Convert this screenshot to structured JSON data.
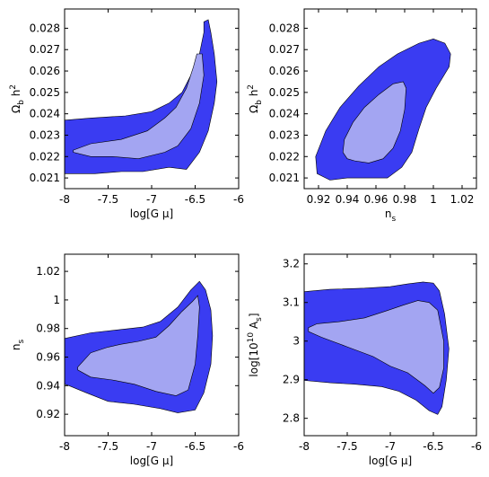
{
  "colors": {
    "outer": "#3a3cf2",
    "inner": "#a3a5f2"
  },
  "chart_data": [
    {
      "type": "area",
      "xlim": [
        -8,
        -6
      ],
      "ylim": [
        0.0205,
        0.0289
      ],
      "xticks": [
        -8,
        -7.5,
        -7,
        -6.5,
        -6
      ],
      "xtick_labels": [
        "-8",
        "-7.5",
        "-7",
        "-6.5",
        "-6"
      ],
      "yticks": [
        0.021,
        0.022,
        0.023,
        0.024,
        0.025,
        0.026,
        0.027,
        0.028
      ],
      "ytick_labels": [
        "0.021",
        "0.022",
        "0.023",
        "0.024",
        "0.025",
        "0.026",
        "0.027",
        "0.028"
      ],
      "xlabel": "log[G μ]",
      "ylabel": {
        "main": "Ω",
        "sub": "b",
        "tail": " h",
        "sup": "2"
      },
      "outer": [
        [
          -8,
          0.0237
        ],
        [
          -7.7,
          0.0238
        ],
        [
          -7.3,
          0.0239
        ],
        [
          -7,
          0.0241
        ],
        [
          -6.8,
          0.0245
        ],
        [
          -6.65,
          0.025
        ],
        [
          -6.55,
          0.0258
        ],
        [
          -6.45,
          0.0268
        ],
        [
          -6.4,
          0.0278
        ],
        [
          -6.4,
          0.0283
        ],
        [
          -6.35,
          0.0284
        ],
        [
          -6.32,
          0.0278
        ],
        [
          -6.28,
          0.0268
        ],
        [
          -6.25,
          0.0255
        ],
        [
          -6.28,
          0.0245
        ],
        [
          -6.35,
          0.0232
        ],
        [
          -6.45,
          0.0222
        ],
        [
          -6.6,
          0.0214
        ],
        [
          -6.8,
          0.0215
        ],
        [
          -7.1,
          0.0213
        ],
        [
          -7.35,
          0.0213
        ],
        [
          -7.65,
          0.0212
        ],
        [
          -7.85,
          0.0212
        ],
        [
          -8,
          0.0212
        ]
      ],
      "inner": [
        [
          -7.9,
          0.0223
        ],
        [
          -7.7,
          0.0226
        ],
        [
          -7.35,
          0.0228
        ],
        [
          -7.05,
          0.0232
        ],
        [
          -6.85,
          0.0238
        ],
        [
          -6.72,
          0.0243
        ],
        [
          -6.6,
          0.0252
        ],
        [
          -6.52,
          0.0262
        ],
        [
          -6.48,
          0.0268
        ],
        [
          -6.42,
          0.0268
        ],
        [
          -6.4,
          0.0258
        ],
        [
          -6.45,
          0.0245
        ],
        [
          -6.55,
          0.0233
        ],
        [
          -6.7,
          0.0225
        ],
        [
          -6.85,
          0.0222
        ],
        [
          -7.15,
          0.0219
        ],
        [
          -7.45,
          0.022
        ],
        [
          -7.7,
          0.022
        ],
        [
          -7.9,
          0.0222
        ]
      ]
    },
    {
      "type": "area",
      "xlim": [
        0.91,
        1.03
      ],
      "ylim": [
        0.0205,
        0.0289
      ],
      "xticks": [
        0.92,
        0.94,
        0.96,
        0.98,
        1,
        1.02
      ],
      "xtick_labels": [
        "0.92",
        "0.94",
        "0.96",
        "0.98",
        "1",
        "1.02"
      ],
      "yticks": [
        0.021,
        0.022,
        0.023,
        0.024,
        0.025,
        0.026,
        0.027,
        0.028
      ],
      "ytick_labels": [
        "0.021",
        "0.022",
        "0.023",
        "0.024",
        "0.025",
        "0.026",
        "0.027",
        "0.028"
      ],
      "xlabel": {
        "main": "n",
        "sub": "s"
      },
      "ylabel": {
        "main": "Ω",
        "sub": "b",
        "tail": " h",
        "sup": "2"
      },
      "outer": [
        [
          0.919,
          0.0212
        ],
        [
          0.918,
          0.022
        ],
        [
          0.925,
          0.0232
        ],
        [
          0.935,
          0.0243
        ],
        [
          0.948,
          0.0253
        ],
        [
          0.962,
          0.0262
        ],
        [
          0.975,
          0.0268
        ],
        [
          0.99,
          0.0273
        ],
        [
          1.0,
          0.0275
        ],
        [
          1.008,
          0.0273
        ],
        [
          1.012,
          0.0268
        ],
        [
          1.011,
          0.0262
        ],
        [
          1.002,
          0.0252
        ],
        [
          0.995,
          0.0243
        ],
        [
          0.99,
          0.0233
        ],
        [
          0.985,
          0.0222
        ],
        [
          0.978,
          0.0215
        ],
        [
          0.968,
          0.021
        ],
        [
          0.955,
          0.021
        ],
        [
          0.94,
          0.021
        ],
        [
          0.928,
          0.0209
        ]
      ],
      "inner": [
        [
          0.937,
          0.0222
        ],
        [
          0.938,
          0.0228
        ],
        [
          0.944,
          0.0236
        ],
        [
          0.952,
          0.0243
        ],
        [
          0.962,
          0.0249
        ],
        [
          0.972,
          0.0254
        ],
        [
          0.979,
          0.0255
        ],
        [
          0.981,
          0.0252
        ],
        [
          0.98,
          0.0242
        ],
        [
          0.977,
          0.0232
        ],
        [
          0.972,
          0.0224
        ],
        [
          0.965,
          0.0219
        ],
        [
          0.955,
          0.0217
        ],
        [
          0.945,
          0.0218
        ],
        [
          0.94,
          0.0219
        ]
      ]
    },
    {
      "type": "area",
      "xlim": [
        -8,
        -6
      ],
      "ylim": [
        0.905,
        1.032
      ],
      "xticks": [
        -8,
        -7.5,
        -7,
        -6.5,
        -6
      ],
      "xtick_labels": [
        "-8",
        "-7.5",
        "-7",
        "-6.5",
        "-6"
      ],
      "yticks": [
        0.92,
        0.94,
        0.96,
        0.98,
        1,
        1.02
      ],
      "ytick_labels": [
        "0.92",
        "0.94",
        "0.96",
        "0.98",
        "1",
        "1.02"
      ],
      "xlabel": "log[G μ]",
      "ylabel": {
        "main": "n",
        "sub": "s"
      },
      "outer": [
        [
          -8,
          0.973
        ],
        [
          -7.7,
          0.977
        ],
        [
          -7.4,
          0.979
        ],
        [
          -7.1,
          0.981
        ],
        [
          -6.9,
          0.985
        ],
        [
          -6.7,
          0.995
        ],
        [
          -6.55,
          1.007
        ],
        [
          -6.45,
          1.013
        ],
        [
          -6.38,
          1.007
        ],
        [
          -6.32,
          0.993
        ],
        [
          -6.3,
          0.975
        ],
        [
          -6.32,
          0.955
        ],
        [
          -6.4,
          0.935
        ],
        [
          -6.5,
          0.923
        ],
        [
          -6.7,
          0.921
        ],
        [
          -6.9,
          0.924
        ],
        [
          -7.2,
          0.927
        ],
        [
          -7.5,
          0.929
        ],
        [
          -7.75,
          0.935
        ],
        [
          -7.95,
          0.94
        ],
        [
          -8,
          0.941
        ]
      ],
      "inner": [
        [
          -7.85,
          0.953
        ],
        [
          -7.7,
          0.963
        ],
        [
          -7.5,
          0.967
        ],
        [
          -7.35,
          0.969
        ],
        [
          -7.15,
          0.971
        ],
        [
          -6.95,
          0.974
        ],
        [
          -6.8,
          0.982
        ],
        [
          -6.65,
          0.992
        ],
        [
          -6.53,
          0.999
        ],
        [
          -6.47,
          1.003
        ],
        [
          -6.45,
          0.995
        ],
        [
          -6.47,
          0.975
        ],
        [
          -6.5,
          0.955
        ],
        [
          -6.58,
          0.937
        ],
        [
          -6.72,
          0.933
        ],
        [
          -6.95,
          0.936
        ],
        [
          -7.2,
          0.941
        ],
        [
          -7.45,
          0.944
        ],
        [
          -7.7,
          0.946
        ],
        [
          -7.85,
          0.951
        ]
      ]
    },
    {
      "type": "area",
      "xlim": [
        -8,
        -6
      ],
      "ylim": [
        2.755,
        3.225
      ],
      "xticks": [
        -8,
        -7.5,
        -7,
        -6.5,
        -6
      ],
      "xtick_labels": [
        "-8",
        "-7.5",
        "-7",
        "-6.5",
        "-6"
      ],
      "yticks": [
        2.8,
        2.9,
        3,
        3.1,
        3.2
      ],
      "ytick_labels": [
        "2.8",
        "2.9",
        "3",
        "3.1",
        "3.2"
      ],
      "xlabel": "log[G μ]",
      "ylabel": {
        "main": "log[10",
        "sup": "10",
        "pre": "log[10",
        "tail": " A",
        "sub": "s",
        "close": "]"
      },
      "outer": [
        [
          -8,
          3.128
        ],
        [
          -7.7,
          3.134
        ],
        [
          -7.3,
          3.137
        ],
        [
          -7,
          3.141
        ],
        [
          -6.8,
          3.148
        ],
        [
          -6.62,
          3.153
        ],
        [
          -6.5,
          3.15
        ],
        [
          -6.43,
          3.13
        ],
        [
          -6.37,
          3.07
        ],
        [
          -6.32,
          2.98
        ],
        [
          -6.35,
          2.9
        ],
        [
          -6.4,
          2.83
        ],
        [
          -6.45,
          2.81
        ],
        [
          -6.55,
          2.82
        ],
        [
          -6.7,
          2.847
        ],
        [
          -6.9,
          2.87
        ],
        [
          -7.1,
          2.882
        ],
        [
          -7.4,
          2.888
        ],
        [
          -7.7,
          2.892
        ],
        [
          -8,
          2.898
        ]
      ],
      "inner": [
        [
          -7.95,
          3.035
        ],
        [
          -7.85,
          3.045
        ],
        [
          -7.6,
          3.05
        ],
        [
          -7.3,
          3.06
        ],
        [
          -7.05,
          3.078
        ],
        [
          -6.85,
          3.093
        ],
        [
          -6.68,
          3.105
        ],
        [
          -6.55,
          3.1
        ],
        [
          -6.45,
          3.08
        ],
        [
          -6.38,
          3.0
        ],
        [
          -6.38,
          2.93
        ],
        [
          -6.43,
          2.88
        ],
        [
          -6.5,
          2.865
        ],
        [
          -6.6,
          2.885
        ],
        [
          -6.8,
          2.918
        ],
        [
          -7.0,
          2.935
        ],
        [
          -7.2,
          2.96
        ],
        [
          -7.5,
          2.985
        ],
        [
          -7.8,
          3.01
        ],
        [
          -7.95,
          3.025
        ]
      ]
    }
  ]
}
